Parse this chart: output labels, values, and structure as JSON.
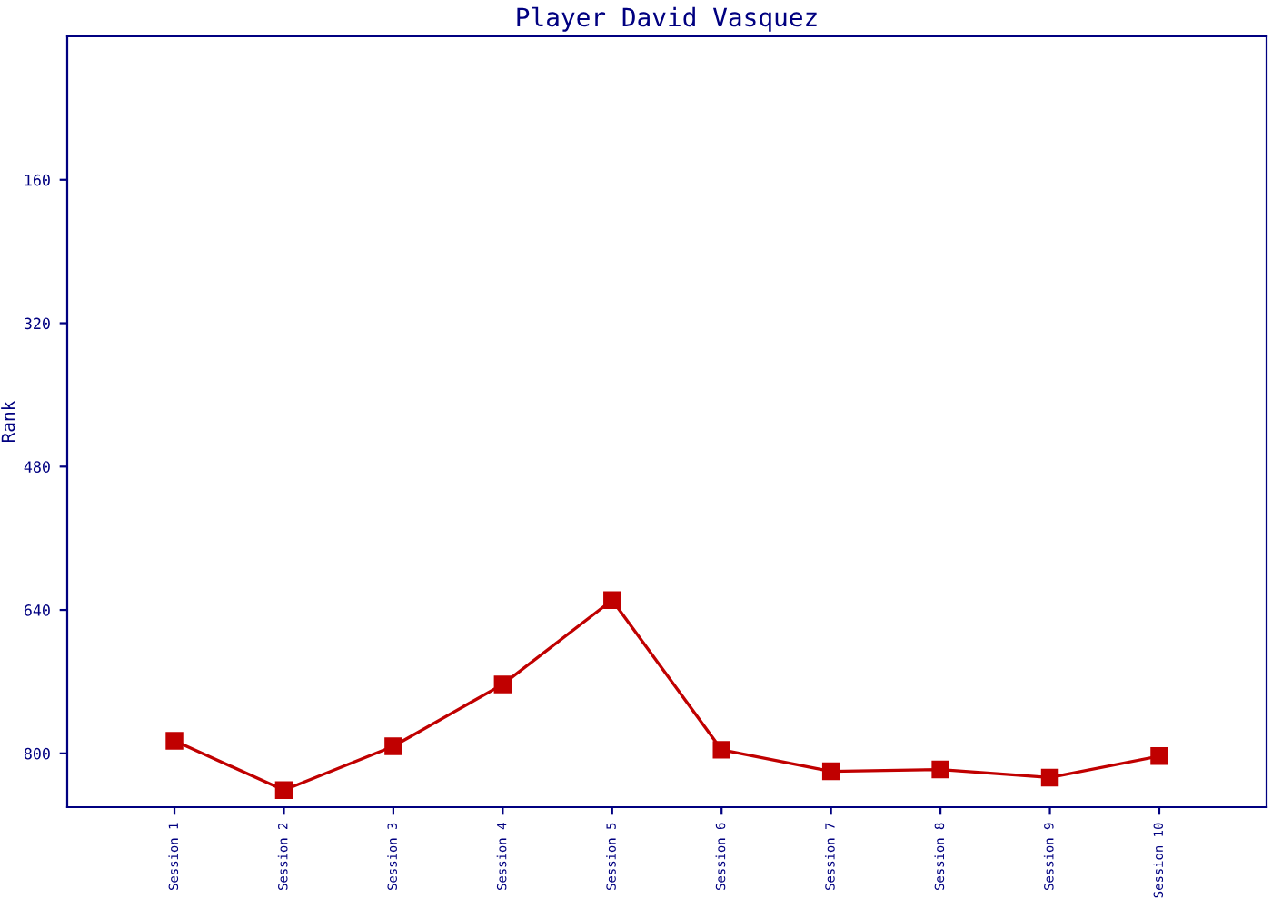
{
  "chart_data": {
    "type": "line",
    "title": "Player David Vasquez",
    "ylabel": "Rank",
    "categories": [
      "Session 1",
      "Session 2",
      "Session 3",
      "Session 4",
      "Session 5",
      "Session 6",
      "Session 7",
      "Session 8",
      "Session 9",
      "Session 10"
    ],
    "series": [
      {
        "color": "#c00000",
        "values": [
          786,
          841,
          792,
          723,
          629,
          796,
          820,
          818,
          827,
          803
        ]
      }
    ],
    "ylim": [
      860,
      0
    ],
    "yticks": [
      160,
      320,
      480,
      640,
      800
    ],
    "grid": false,
    "legend": false,
    "marker": "square",
    "line_style": "solid"
  }
}
